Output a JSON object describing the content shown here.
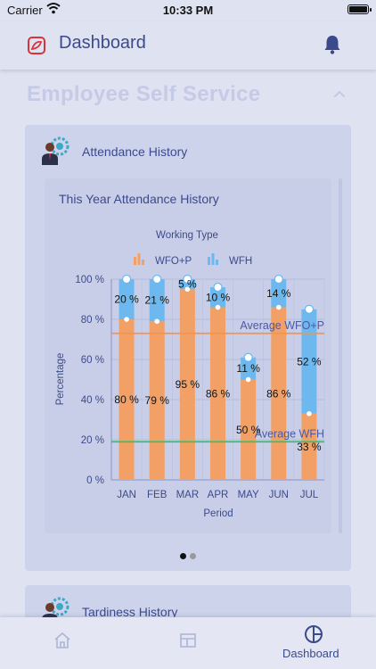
{
  "status_bar": {
    "carrier": "Carrier",
    "time": "10:33 PM"
  },
  "header": {
    "title": "Dashboard"
  },
  "section": {
    "title": "Employee Self Service"
  },
  "attendance_card": {
    "title": "Attendance History",
    "chart_title": "This Year Attendance History"
  },
  "tardiness_card": {
    "title": "Tardiness History"
  },
  "tabs": [
    {
      "name": "home",
      "label": ""
    },
    {
      "name": "layout",
      "label": ""
    },
    {
      "name": "dashboard",
      "label": "Dashboard"
    }
  ],
  "colors": {
    "wfo": "#f2a066",
    "wfh": "#6db8ee",
    "avg_wfo_line": "#f2954f",
    "avg_wfh_line": "#35c26b",
    "accent": "#3b4a8c"
  },
  "chart_data": {
    "type": "bar",
    "stacked": true,
    "title": "",
    "legend_title": "Working Type",
    "legend_position": "top",
    "categories": [
      "JAN",
      "FEB",
      "MAR",
      "APR",
      "MAY",
      "JUN",
      "JUL"
    ],
    "series": [
      {
        "name": "WFO+P",
        "values": [
          80,
          79,
          95,
          86,
          50,
          86,
          33
        ],
        "labels": [
          "80 %",
          "79 %",
          "95 %",
          "86 %",
          "50 %",
          "86 %",
          "33 %"
        ]
      },
      {
        "name": "WFH",
        "values": [
          20,
          21,
          5,
          10,
          11,
          14,
          52
        ],
        "labels": [
          "20 %",
          "21 %",
          "5 %",
          "10 %",
          "11 %",
          "14 %",
          "52 %"
        ]
      }
    ],
    "reference_lines": [
      {
        "label": "Average WFO+P",
        "value": 73
      },
      {
        "label": "Average WFH",
        "value": 19
      }
    ],
    "xlabel": "Period",
    "ylabel": "Percentage",
    "ylim": [
      0,
      100
    ],
    "yticks": [
      "0 %",
      "20 %",
      "40 %",
      "60 %",
      "80 %",
      "100 %"
    ],
    "grid": true
  }
}
